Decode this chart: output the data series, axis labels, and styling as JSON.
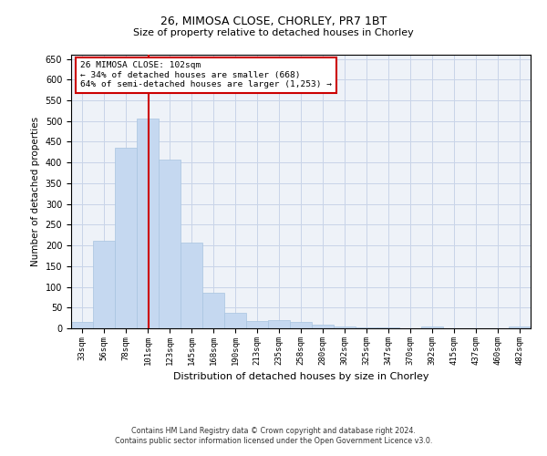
{
  "title1": "26, MIMOSA CLOSE, CHORLEY, PR7 1BT",
  "title2": "Size of property relative to detached houses in Chorley",
  "xlabel": "Distribution of detached houses by size in Chorley",
  "ylabel": "Number of detached properties",
  "footnote1": "Contains HM Land Registry data © Crown copyright and database right 2024.",
  "footnote2": "Contains public sector information licensed under the Open Government Licence v3.0.",
  "annotation_line1": "26 MIMOSA CLOSE: 102sqm",
  "annotation_line2": "← 34% of detached houses are smaller (668)",
  "annotation_line3": "64% of semi-detached houses are larger (1,253) →",
  "property_size": 102,
  "bar_color": "#c5d8f0",
  "bar_edge_color": "#a8c4e0",
  "red_line_x": 102,
  "annotation_box_color": "#ffffff",
  "annotation_box_edge": "#cc0000",
  "grid_color": "#c8d4e8",
  "bg_color": "#eef2f8",
  "categories": [
    "33sqm",
    "56sqm",
    "78sqm",
    "101sqm",
    "123sqm",
    "145sqm",
    "168sqm",
    "190sqm",
    "213sqm",
    "235sqm",
    "258sqm",
    "280sqm",
    "302sqm",
    "325sqm",
    "347sqm",
    "370sqm",
    "392sqm",
    "415sqm",
    "437sqm",
    "460sqm",
    "482sqm"
  ],
  "bin_edges": [
    22,
    44.5,
    67,
    89.5,
    112,
    134.5,
    157,
    179.5,
    202,
    224.5,
    247,
    269.5,
    292,
    314.5,
    337,
    359.5,
    382,
    404.5,
    427,
    449.5,
    472,
    494.5
  ],
  "values": [
    15,
    212,
    435,
    505,
    407,
    207,
    85,
    38,
    18,
    20,
    15,
    8,
    5,
    3,
    2,
    1,
    4,
    1,
    0,
    1,
    5
  ],
  "ylim": [
    0,
    660
  ],
  "yticks": [
    0,
    50,
    100,
    150,
    200,
    250,
    300,
    350,
    400,
    450,
    500,
    550,
    600,
    650
  ]
}
